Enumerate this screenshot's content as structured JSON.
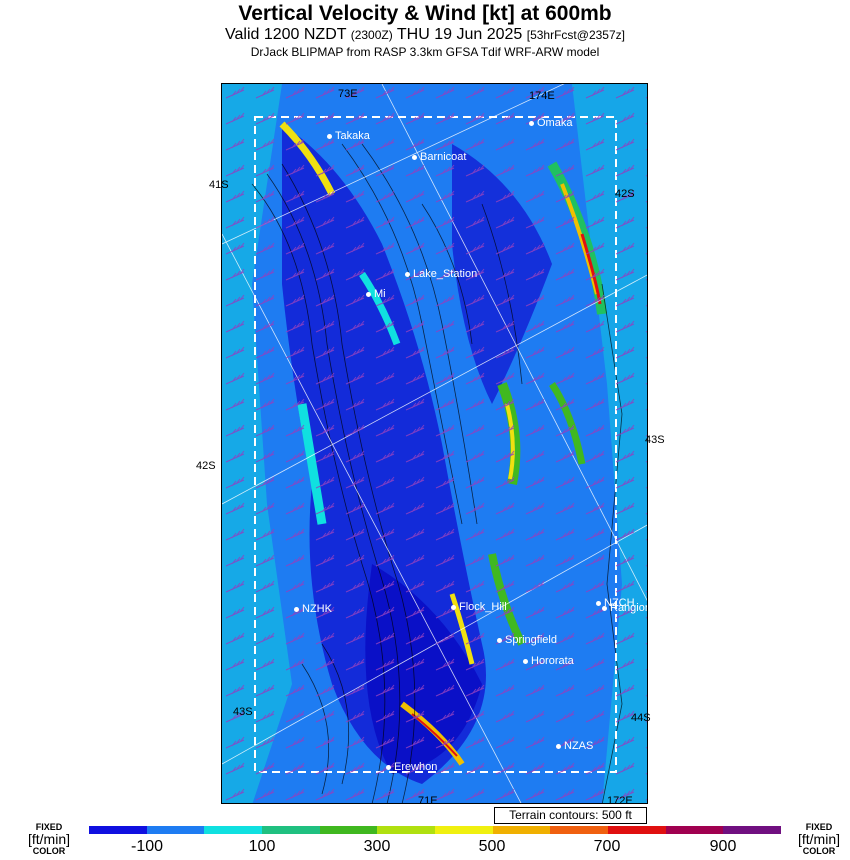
{
  "header": {
    "title": "Vertical Velocity & Wind [kt] at 600mb",
    "valid_prefix": "Valid 1200 NZDT",
    "valid_utc": "(2300Z)",
    "valid_date": "THU 19 Jun 2025",
    "forecast": "[53hrFcst@2357z]",
    "model_line": "DrJack BLIPMAP from RASP 3.3km GFSA Tdif WRF-ARW model"
  },
  "grid_labels": {
    "lon_173e": "73E",
    "lon_174e": "174E",
    "lon_171e": "71E",
    "lon_172e": "172E",
    "lat_41s_left": "41S",
    "lat_42s_right": "42S",
    "lat_42s_left": "42S",
    "lat_43s_right": "43S",
    "lat_43s_left": "43S",
    "lat_44s_right": "44S"
  },
  "places": [
    {
      "name": "Takaka"
    },
    {
      "name": "Omaka"
    },
    {
      "name": "Barnicoat"
    },
    {
      "name": "Lake_Station"
    },
    {
      "name": "Mi"
    },
    {
      "name": "NZHK"
    },
    {
      "name": "Flock_Hill"
    },
    {
      "name": "NZCH"
    },
    {
      "name": "Rangiora"
    },
    {
      "name": "Springfield"
    },
    {
      "name": "Hororata"
    },
    {
      "name": "NZAS"
    },
    {
      "name": "Erewhon"
    }
  ],
  "terrain_note": "Terrain contours: 500 ft",
  "legend": {
    "fixed_label": "FIXED",
    "units": "[ft/min]",
    "color_label": "COLOR",
    "ticks": [
      "-100",
      "100",
      "300",
      "500",
      "700",
      "900"
    ],
    "colors": [
      "#1010e0",
      "#1e7cf2",
      "#10e0e0",
      "#20c080",
      "#40b820",
      "#b0e010",
      "#f0f010",
      "#f0b000",
      "#f06010",
      "#e01010",
      "#a00050",
      "#701080"
    ]
  }
}
